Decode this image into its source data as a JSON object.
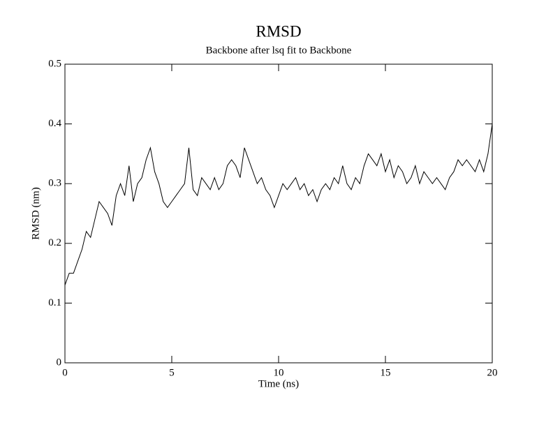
{
  "chart_data": {
    "type": "line",
    "title": "RMSD",
    "subtitle": "Backbone after lsq fit to Backbone",
    "x_label": "Time (ns)",
    "y_label": "RMSD (nm)",
    "color": "#000000",
    "x": [
      0,
      0.2,
      0.4,
      0.6,
      0.8,
      1,
      1.2,
      1.4,
      1.6,
      1.8,
      2,
      2.2,
      2.4,
      2.6,
      2.8,
      3,
      3.2,
      3.4,
      3.6,
      3.8,
      4,
      4.2,
      4.4,
      4.6,
      4.8,
      5,
      5.2,
      5.4,
      5.6,
      5.8,
      6,
      6.2,
      6.4,
      6.6,
      6.8,
      7,
      7.2,
      7.4,
      7.6,
      7.8,
      8,
      8.2,
      8.4,
      8.6,
      8.8,
      9,
      9.2,
      9.4,
      9.6,
      9.8,
      10,
      10.2,
      10.4,
      10.6,
      10.8,
      11,
      11.2,
      11.4,
      11.6,
      11.8,
      12,
      12.2,
      12.4,
      12.6,
      12.8,
      13,
      13.2,
      13.4,
      13.6,
      13.8,
      14,
      14.2,
      14.4,
      14.6,
      14.8,
      15,
      15.2,
      15.4,
      15.6,
      15.8,
      16,
      16.2,
      16.4,
      16.6,
      16.8,
      17,
      17.2,
      17.4,
      17.6,
      17.8,
      18,
      18.2,
      18.4,
      18.6,
      18.8,
      19,
      19.2,
      19.4,
      19.6,
      19.8,
      20
    ],
    "values": [
      0.13,
      0.15,
      0.15,
      0.17,
      0.19,
      0.22,
      0.21,
      0.24,
      0.27,
      0.26,
      0.25,
      0.23,
      0.28,
      0.3,
      0.28,
      0.33,
      0.27,
      0.3,
      0.31,
      0.34,
      0.36,
      0.32,
      0.3,
      0.27,
      0.26,
      0.27,
      0.28,
      0.29,
      0.3,
      0.36,
      0.29,
      0.28,
      0.31,
      0.3,
      0.29,
      0.31,
      0.29,
      0.3,
      0.33,
      0.34,
      0.33,
      0.31,
      0.36,
      0.34,
      0.32,
      0.3,
      0.31,
      0.29,
      0.28,
      0.26,
      0.28,
      0.3,
      0.29,
      0.3,
      0.31,
      0.29,
      0.3,
      0.28,
      0.29,
      0.27,
      0.29,
      0.3,
      0.29,
      0.31,
      0.3,
      0.33,
      0.3,
      0.29,
      0.31,
      0.3,
      0.33,
      0.35,
      0.34,
      0.33,
      0.35,
      0.32,
      0.34,
      0.31,
      0.33,
      0.32,
      0.3,
      0.31,
      0.33,
      0.3,
      0.32,
      0.31,
      0.3,
      0.31,
      0.3,
      0.29,
      0.31,
      0.32,
      0.34,
      0.33,
      0.34,
      0.33,
      0.32,
      0.34,
      0.32,
      0.35,
      0.4
    ],
    "xlim": [
      0,
      20
    ],
    "xticks": [
      0,
      5,
      10,
      15,
      20
    ],
    "ylim": [
      0,
      0.5
    ],
    "yticks": [
      0,
      0.1,
      0.2,
      0.3,
      0.4,
      0.5
    ]
  }
}
